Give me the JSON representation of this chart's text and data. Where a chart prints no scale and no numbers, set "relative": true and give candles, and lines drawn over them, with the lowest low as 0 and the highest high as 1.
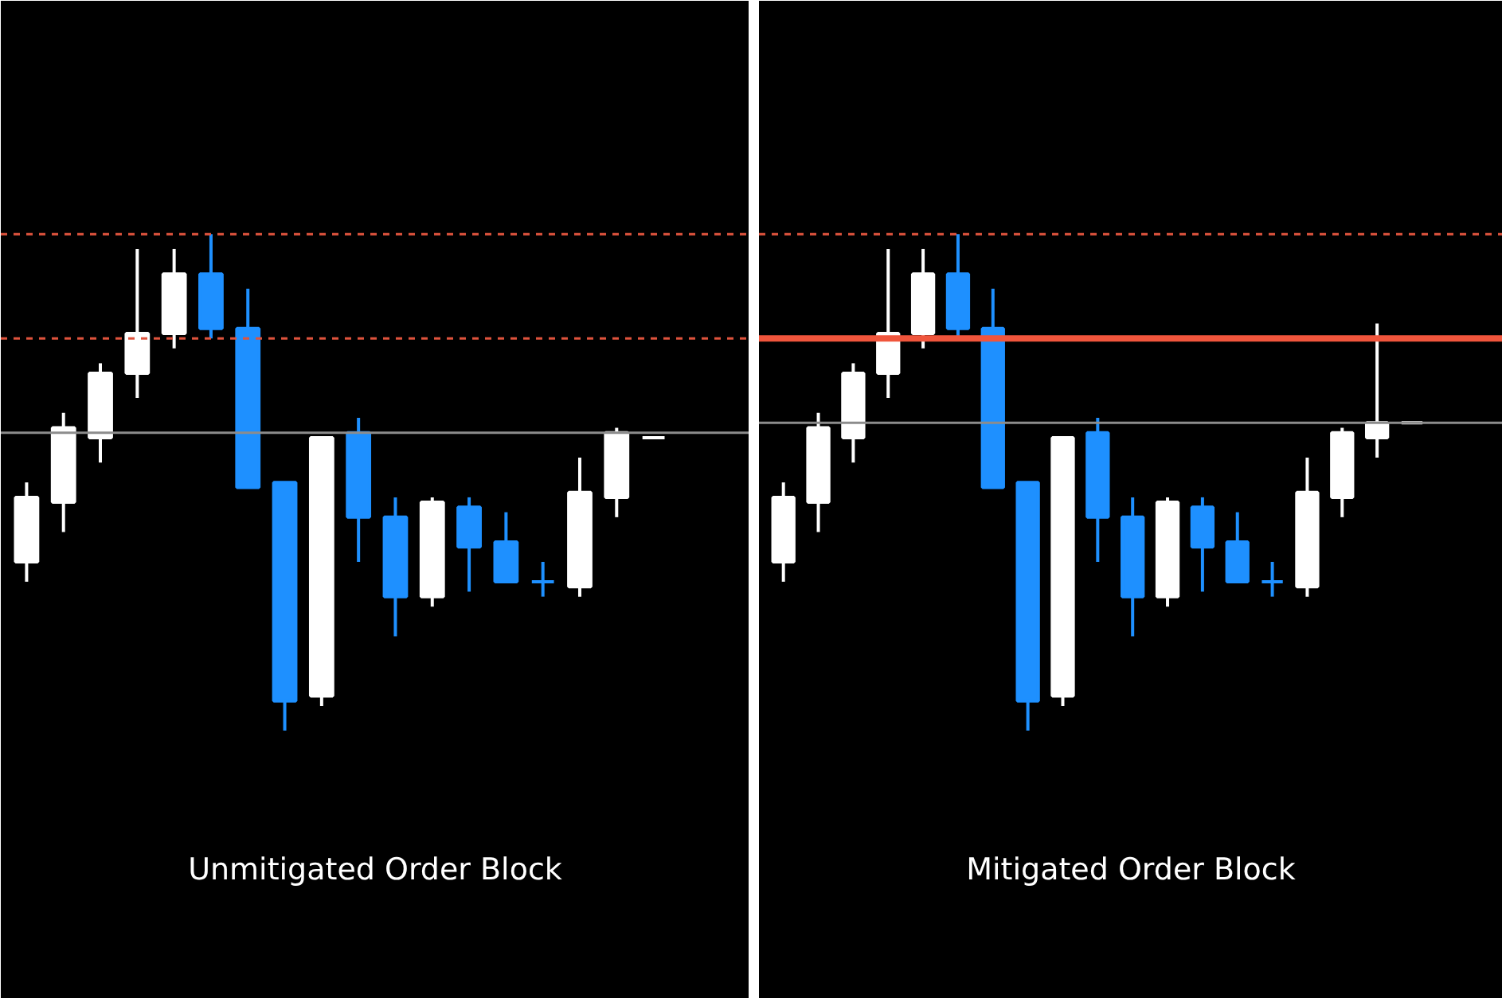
{
  "chart_data": [
    {
      "type": "candlestick",
      "title": "Unmitigated Order Block",
      "relative": true,
      "tick_labels": false,
      "categories": [
        null,
        null,
        null,
        null,
        null,
        null,
        null,
        null,
        null,
        null,
        null,
        null,
        null,
        null,
        null,
        null,
        null,
        null
      ],
      "ohlc": [
        [
          0.34,
          0.5,
          0.3,
          0.47
        ],
        [
          0.46,
          0.64,
          0.4,
          0.61
        ],
        [
          0.59,
          0.74,
          0.54,
          0.72
        ],
        [
          0.72,
          0.97,
          0.67,
          0.8
        ],
        [
          0.8,
          0.97,
          0.77,
          0.92
        ],
        [
          0.92,
          1,
          0.79,
          0.81
        ],
        [
          0.81,
          0.89,
          0.49,
          0.49
        ],
        [
          0.5,
          0.5,
          0,
          0.06
        ],
        [
          0.07,
          0.59,
          0.05,
          0.59
        ],
        [
          0.6,
          0.63,
          0.34,
          0.43
        ],
        [
          0.43,
          0.47,
          0.19,
          0.27
        ],
        [
          0.27,
          0.47,
          0.25,
          0.46
        ],
        [
          0.45,
          0.47,
          0.28,
          0.37
        ],
        [
          0.38,
          0.44,
          0.3,
          0.3
        ],
        [
          0.3,
          0.34,
          0.27,
          0.3
        ],
        [
          0.29,
          0.55,
          0.27,
          0.48
        ],
        [
          0.47,
          0.61,
          0.43,
          0.6
        ],
        [
          0.59,
          0.59,
          0.59,
          0.59
        ]
      ],
      "colors": [
        "#ffffff",
        "#ffffff",
        "#ffffff",
        "#ffffff",
        "#ffffff",
        "#1e90ff",
        "#1e90ff",
        "#1e90ff",
        "#ffffff",
        "#1e90ff",
        "#1e90ff",
        "#ffffff",
        "#1e90ff",
        "#1e90ff",
        "#1e90ff",
        "#ffffff",
        "#ffffff",
        "#ffffff"
      ],
      "ref_lines": [
        {
          "axis": "y",
          "value": 1,
          "color": "#e0533d",
          "line_style": "dashed"
        },
        {
          "axis": "y",
          "value": 0.79,
          "color": "#e0533d",
          "line_style": "dashed"
        },
        {
          "axis": "y",
          "value": 0.6,
          "color": "#8c8c8c",
          "line_style": "solid"
        }
      ]
    },
    {
      "type": "candlestick",
      "title": "Mitigated Order Block",
      "relative": true,
      "tick_labels": false,
      "categories": [
        null,
        null,
        null,
        null,
        null,
        null,
        null,
        null,
        null,
        null,
        null,
        null,
        null,
        null,
        null,
        null,
        null,
        null,
        null
      ],
      "ohlc": [
        [
          0.34,
          0.5,
          0.3,
          0.47
        ],
        [
          0.46,
          0.64,
          0.4,
          0.61
        ],
        [
          0.59,
          0.74,
          0.54,
          0.72
        ],
        [
          0.72,
          0.97,
          0.67,
          0.8
        ],
        [
          0.8,
          0.97,
          0.77,
          0.92
        ],
        [
          0.92,
          1,
          0.79,
          0.81
        ],
        [
          0.81,
          0.89,
          0.49,
          0.49
        ],
        [
          0.5,
          0.5,
          0,
          0.06
        ],
        [
          0.07,
          0.59,
          0.05,
          0.59
        ],
        [
          0.6,
          0.63,
          0.34,
          0.43
        ],
        [
          0.43,
          0.47,
          0.19,
          0.27
        ],
        [
          0.27,
          0.47,
          0.25,
          0.46
        ],
        [
          0.45,
          0.47,
          0.28,
          0.37
        ],
        [
          0.38,
          0.44,
          0.3,
          0.3
        ],
        [
          0.3,
          0.34,
          0.27,
          0.3
        ],
        [
          0.29,
          0.55,
          0.27,
          0.48
        ],
        [
          0.47,
          0.61,
          0.43,
          0.6
        ],
        [
          0.59,
          0.82,
          0.55,
          0.62
        ],
        [
          0.62,
          0.62,
          0.62,
          0.62
        ]
      ],
      "colors": [
        "#ffffff",
        "#ffffff",
        "#ffffff",
        "#ffffff",
        "#ffffff",
        "#1e90ff",
        "#1e90ff",
        "#1e90ff",
        "#ffffff",
        "#1e90ff",
        "#1e90ff",
        "#ffffff",
        "#1e90ff",
        "#1e90ff",
        "#1e90ff",
        "#ffffff",
        "#ffffff",
        "#ffffff",
        "#ffffff"
      ],
      "ref_lines": [
        {
          "axis": "y",
          "value": 1,
          "color": "#e0533d",
          "line_style": "dashed"
        },
        {
          "axis": "y",
          "value": 0.79,
          "color": "#f0553c",
          "line_style": "solid"
        },
        {
          "axis": "y",
          "value": 0.62,
          "color": "#8c8c8c",
          "line_style": "solid"
        }
      ]
    }
  ]
}
